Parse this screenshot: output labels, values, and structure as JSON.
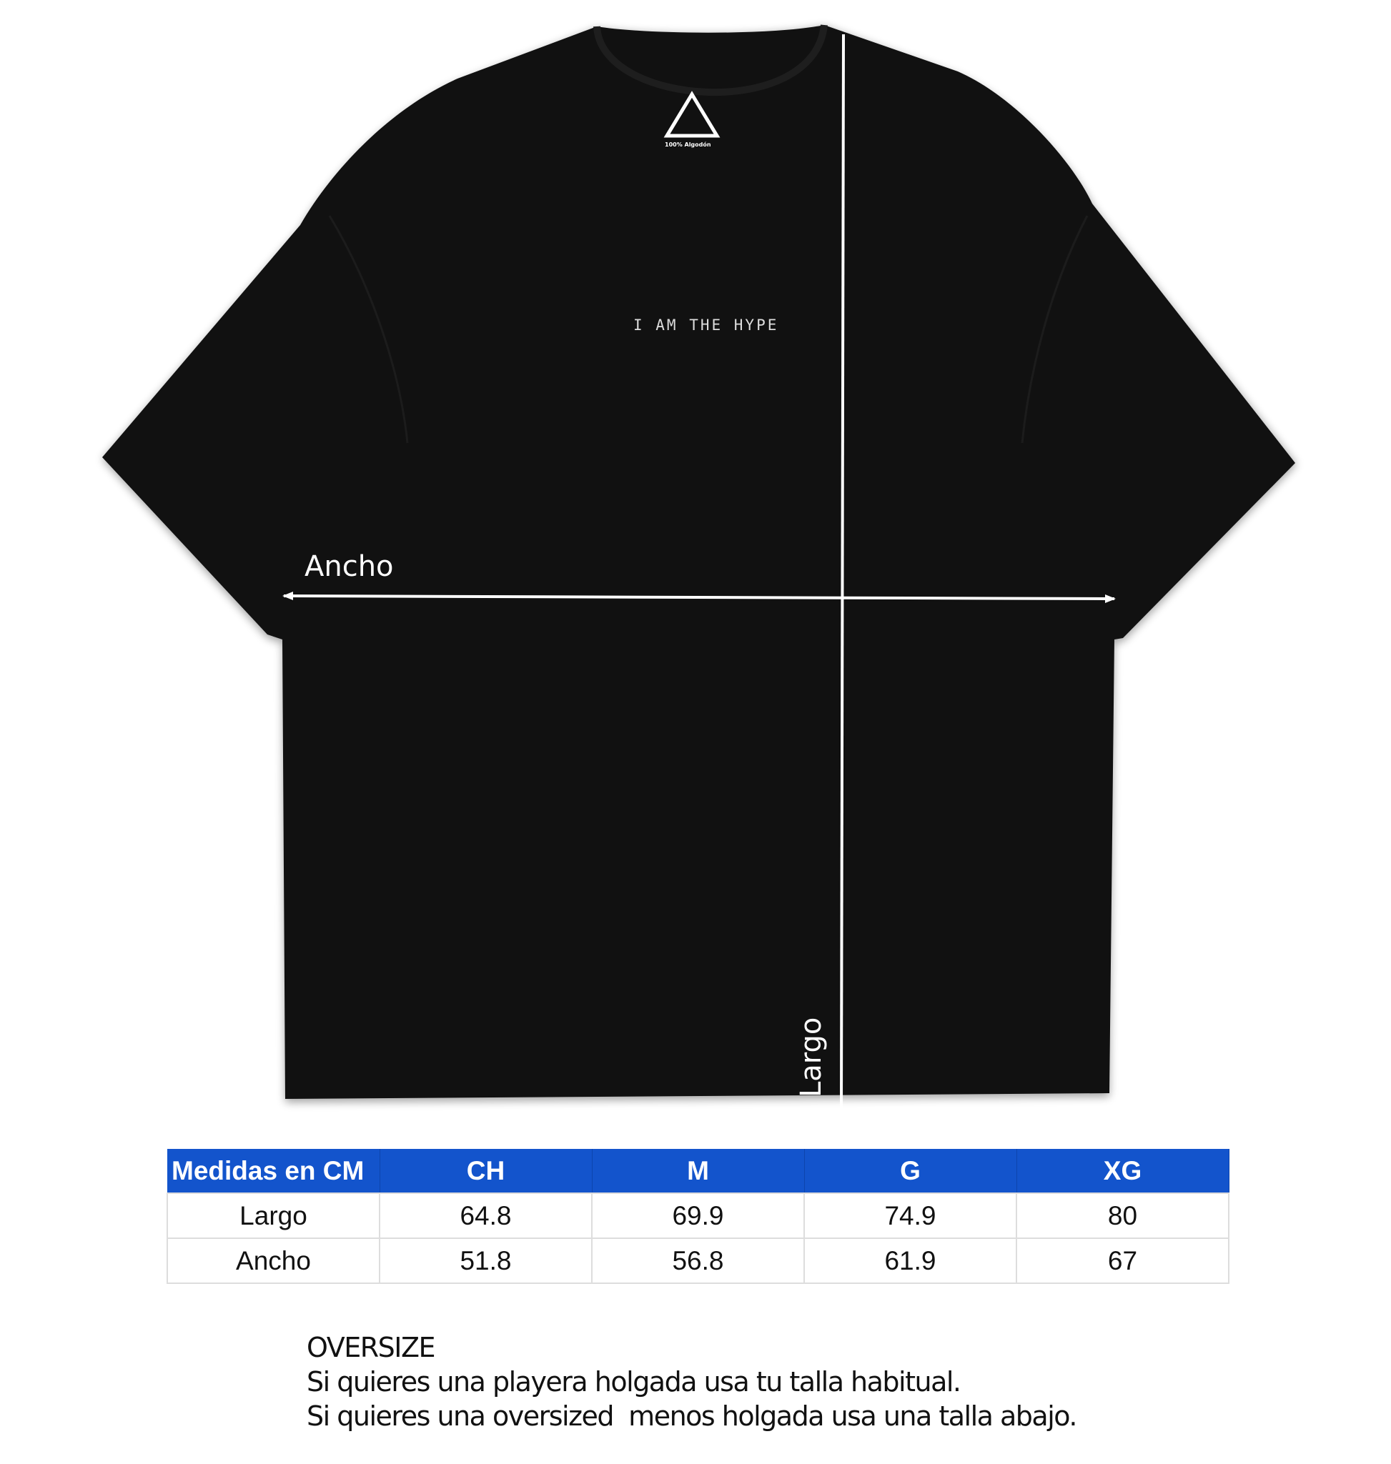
{
  "garment": {
    "chest_print": "I AM THE HYPE",
    "logo": {
      "lines": [
        "I",
        "AM",
        "THE",
        "HYPE"
      ],
      "caption": "100% Algodón"
    },
    "colors": {
      "shirt": "#111111",
      "measure_lines": "#ffffff"
    }
  },
  "measure_labels": {
    "width": "Ancho",
    "length": "Largo"
  },
  "size_table": {
    "header": [
      "Medidas en CM",
      "CH",
      "M",
      "G",
      "XG"
    ],
    "rows": [
      [
        "Largo",
        "64.8",
        "69.9",
        "74.9",
        "80"
      ],
      [
        "Ancho",
        "51.8",
        "56.8",
        "61.9",
        "67"
      ]
    ],
    "header_color": "#1354CC"
  },
  "notes": {
    "title": "OVERSIZE",
    "lines": [
      "Si quieres una playera holgada usa tu talla habitual.",
      "Si quieres una oversized  menos holgada usa una talla abajo."
    ]
  }
}
